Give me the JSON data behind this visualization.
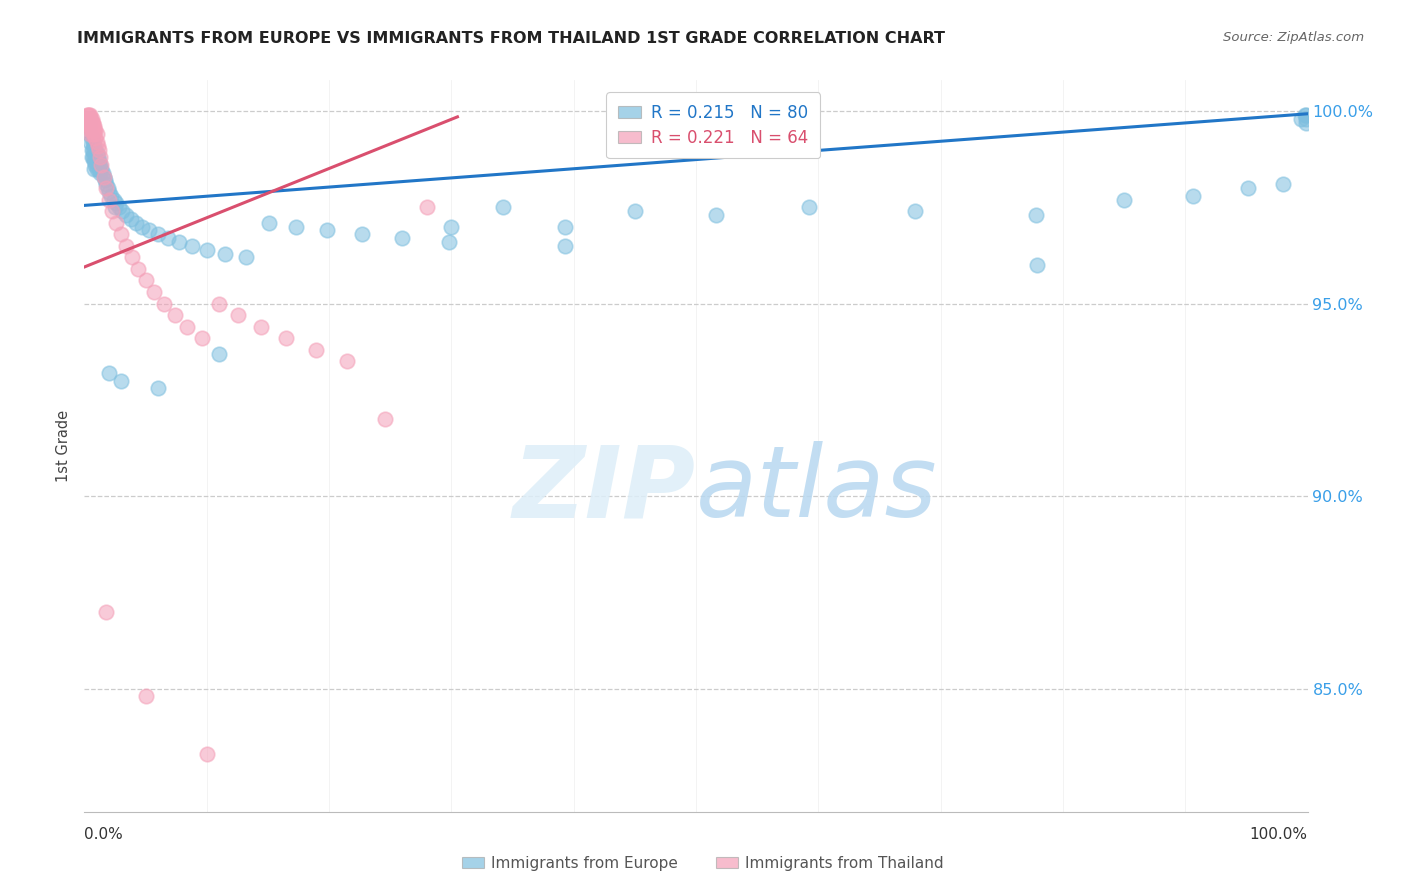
{
  "title": "IMMIGRANTS FROM EUROPE VS IMMIGRANTS FROM THAILAND 1ST GRADE CORRELATION CHART",
  "source": "Source: ZipAtlas.com",
  "ylabel": "1st Grade",
  "xlim": [
    0.0,
    1.0
  ],
  "ylim": [
    0.818,
    1.008
  ],
  "yticks": [
    0.85,
    0.9,
    0.95,
    1.0
  ],
  "ytick_labels": [
    "85.0%",
    "90.0%",
    "95.0%",
    "100.0%"
  ],
  "blue_color": "#7fbfdf",
  "pink_color": "#f4a0b8",
  "blue_line_color": "#2176c7",
  "pink_line_color": "#d94f6e",
  "legend_blue_label": "R = 0.215   N = 80",
  "legend_pink_label": "R = 0.221   N = 64",
  "legend_europe": "Immigrants from Europe",
  "legend_thailand": "Immigrants from Thailand",
  "blue_line_x": [
    0.0,
    1.0
  ],
  "blue_line_y": [
    0.9755,
    0.9993
  ],
  "pink_line_x": [
    0.0,
    0.305
  ],
  "pink_line_y": [
    0.9595,
    0.9985
  ],
  "blue_x": [
    0.004,
    0.005,
    0.005,
    0.006,
    0.006,
    0.006,
    0.007,
    0.007,
    0.007,
    0.008,
    0.008,
    0.008,
    0.008,
    0.009,
    0.009,
    0.009,
    0.01,
    0.01,
    0.01,
    0.011,
    0.011,
    0.012,
    0.012,
    0.013,
    0.013,
    0.014,
    0.015,
    0.016,
    0.017,
    0.018,
    0.019,
    0.02,
    0.022,
    0.024,
    0.026,
    0.028,
    0.031,
    0.034,
    0.038,
    0.042,
    0.047,
    0.053,
    0.06,
    0.068,
    0.077,
    0.088,
    0.1,
    0.115,
    0.132,
    0.151,
    0.173,
    0.198,
    0.227,
    0.26,
    0.298,
    0.342,
    0.393,
    0.393,
    0.45,
    0.516,
    0.592,
    0.679,
    0.778,
    0.779,
    0.85,
    0.906,
    0.951,
    0.98,
    0.995,
    0.998,
    0.999,
    0.999,
    0.999,
    0.02,
    0.025,
    0.03,
    0.06,
    0.11,
    0.3,
    0.005
  ],
  "blue_y": [
    0.996,
    0.994,
    0.992,
    0.993,
    0.99,
    0.988,
    0.992,
    0.99,
    0.988,
    0.991,
    0.989,
    0.987,
    0.985,
    0.99,
    0.988,
    0.986,
    0.989,
    0.987,
    0.985,
    0.988,
    0.986,
    0.987,
    0.985,
    0.986,
    0.984,
    0.985,
    0.984,
    0.983,
    0.982,
    0.981,
    0.98,
    0.979,
    0.978,
    0.977,
    0.976,
    0.975,
    0.974,
    0.973,
    0.972,
    0.971,
    0.97,
    0.969,
    0.968,
    0.967,
    0.966,
    0.965,
    0.964,
    0.963,
    0.962,
    0.971,
    0.97,
    0.969,
    0.968,
    0.967,
    0.966,
    0.975,
    0.97,
    0.965,
    0.974,
    0.973,
    0.975,
    0.974,
    0.973,
    0.96,
    0.977,
    0.978,
    0.98,
    0.981,
    0.998,
    0.999,
    0.999,
    0.998,
    0.997,
    0.932,
    0.975,
    0.93,
    0.928,
    0.937,
    0.97,
    0.998
  ],
  "pink_x": [
    0.002,
    0.003,
    0.003,
    0.003,
    0.003,
    0.004,
    0.004,
    0.004,
    0.004,
    0.004,
    0.004,
    0.005,
    0.005,
    0.005,
    0.005,
    0.005,
    0.005,
    0.005,
    0.006,
    0.006,
    0.006,
    0.006,
    0.006,
    0.007,
    0.007,
    0.007,
    0.007,
    0.008,
    0.008,
    0.008,
    0.009,
    0.009,
    0.01,
    0.01,
    0.011,
    0.012,
    0.013,
    0.014,
    0.016,
    0.018,
    0.02,
    0.023,
    0.026,
    0.03,
    0.034,
    0.039,
    0.044,
    0.05,
    0.057,
    0.065,
    0.074,
    0.084,
    0.096,
    0.11,
    0.126,
    0.144,
    0.165,
    0.189,
    0.215,
    0.246,
    0.28,
    0.018,
    0.05,
    0.1
  ],
  "pink_y": [
    0.999,
    0.999,
    0.998,
    0.998,
    0.997,
    0.999,
    0.998,
    0.998,
    0.997,
    0.997,
    0.996,
    0.999,
    0.998,
    0.998,
    0.997,
    0.996,
    0.995,
    0.994,
    0.998,
    0.997,
    0.997,
    0.996,
    0.995,
    0.997,
    0.996,
    0.995,
    0.994,
    0.996,
    0.995,
    0.994,
    0.995,
    0.993,
    0.994,
    0.992,
    0.991,
    0.99,
    0.988,
    0.986,
    0.983,
    0.98,
    0.977,
    0.974,
    0.971,
    0.968,
    0.965,
    0.962,
    0.959,
    0.956,
    0.953,
    0.95,
    0.947,
    0.944,
    0.941,
    0.95,
    0.947,
    0.944,
    0.941,
    0.938,
    0.935,
    0.92,
    0.975,
    0.87,
    0.848,
    0.833
  ]
}
